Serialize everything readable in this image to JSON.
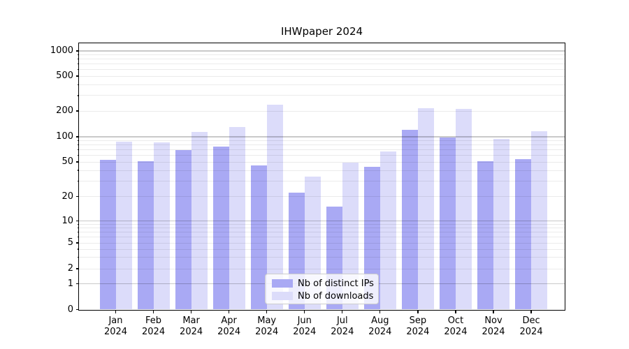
{
  "title": "IHWpaper 2024",
  "chart_data": {
    "type": "bar",
    "title": "IHWpaper 2024",
    "x_categories": [
      "Jan",
      "Feb",
      "Mar",
      "Apr",
      "May",
      "Jun",
      "Jul",
      "Aug",
      "Sep",
      "Oct",
      "Nov",
      "Dec"
    ],
    "x_year_label": "2024",
    "series": [
      {
        "name": "Nb of distinct IPs",
        "color": "#a9a9f4",
        "values": [
          53,
          51,
          70,
          76,
          46,
          22,
          15,
          44,
          120,
          99,
          51,
          54
        ]
      },
      {
        "name": "Nb of downloads",
        "color": "#dcdcfa",
        "values": [
          87,
          86,
          114,
          130,
          235,
          34,
          49,
          67,
          215,
          210,
          94,
          116
        ]
      }
    ],
    "y_axis": {
      "scale": "symlog",
      "ticks": [
        0,
        1,
        2,
        5,
        10,
        20,
        50,
        100,
        200,
        500,
        1000
      ],
      "top_value": 1200
    },
    "grid": {
      "horizontal": true,
      "minor": true,
      "major_lines": [
        1,
        10,
        100,
        1000
      ]
    },
    "legend_position": "lower center",
    "colors": {
      "bar_dark": "#a9a9f4",
      "bar_light": "#dcdcfa",
      "grid_major": "#c9c9c9",
      "grid_minor": "#ebebeb",
      "spine": "#000000",
      "background": "#ffffff"
    }
  }
}
